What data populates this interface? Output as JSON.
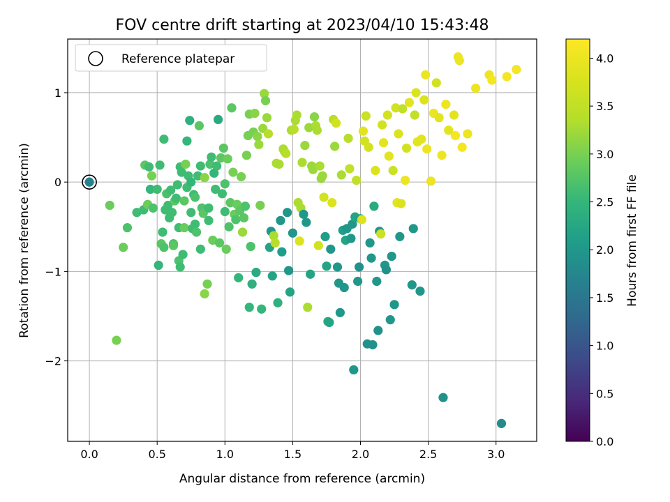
{
  "chart_data": {
    "type": "scatter",
    "title": "FOV centre drift starting at 2023/04/10 15:43:48",
    "xlabel": "Angular distance from reference (arcmin)",
    "ylabel": "Rotation from reference (arcmin)",
    "xlim": [
      -0.16,
      3.3
    ],
    "ylim": [
      -2.9,
      1.6
    ],
    "xticks": [
      0.0,
      0.5,
      1.0,
      1.5,
      2.0,
      2.5,
      3.0
    ],
    "xtick_labels": [
      "0.0",
      "0.5",
      "1.0",
      "1.5",
      "2.0",
      "2.5",
      "3.0"
    ],
    "yticks": [
      -2,
      -1,
      0,
      1
    ],
    "ytick_labels": [
      "−2",
      "−1",
      "0",
      "1"
    ],
    "grid": true,
    "legend": {
      "position": "top-left",
      "entries": [
        "Reference platepar"
      ]
    },
    "reference_point": {
      "x": 0.0,
      "y": 0.0,
      "c": 1.7
    },
    "colorbar": {
      "label": "Hours from first FF file",
      "colormap": "viridis",
      "range": [
        0.0,
        4.2
      ],
      "ticks": [
        0.0,
        0.5,
        1.0,
        1.5,
        2.0,
        2.5,
        3.0,
        3.5,
        4.0
      ],
      "tick_labels": [
        "0.0",
        "0.5",
        "1.0",
        "1.5",
        "2.0",
        "2.5",
        "3.0",
        "3.5",
        "4.0"
      ]
    },
    "points": [
      [
        0.15,
        -0.26,
        2.9
      ],
      [
        0.2,
        -1.77,
        3.0
      ],
      [
        0.25,
        -0.73,
        2.9
      ],
      [
        0.28,
        -0.51,
        2.7
      ],
      [
        0.35,
        -0.34,
        2.6
      ],
      [
        0.4,
        -0.31,
        2.6
      ],
      [
        0.41,
        0.19,
        2.8
      ],
      [
        0.43,
        -0.25,
        2.9
      ],
      [
        0.44,
        0.17,
        2.6
      ],
      [
        0.45,
        -0.08,
        2.5
      ],
      [
        0.46,
        0.07,
        3.0
      ],
      [
        0.47,
        -0.29,
        2.7
      ],
      [
        0.5,
        -0.08,
        2.6
      ],
      [
        0.51,
        -0.93,
        2.5
      ],
      [
        0.52,
        0.19,
        2.6
      ],
      [
        0.53,
        -0.69,
        2.8
      ],
      [
        0.54,
        -0.56,
        2.6
      ],
      [
        0.55,
        0.48,
        2.6
      ],
      [
        0.55,
        -0.73,
        2.7
      ],
      [
        0.56,
        -0.31,
        2.6
      ],
      [
        0.57,
        -0.13,
        2.7
      ],
      [
        0.58,
        -0.26,
        2.6
      ],
      [
        0.59,
        -0.4,
        2.6
      ],
      [
        0.6,
        -0.09,
        2.6
      ],
      [
        0.61,
        -0.34,
        2.6
      ],
      [
        0.62,
        -0.69,
        2.7
      ],
      [
        0.62,
        -0.71,
        2.8
      ],
      [
        0.63,
        -0.21,
        2.8
      ],
      [
        0.64,
        -0.18,
        2.6
      ],
      [
        0.65,
        -0.03,
        2.6
      ],
      [
        0.66,
        -0.51,
        2.6
      ],
      [
        0.66,
        -0.88,
        2.7
      ],
      [
        0.67,
        0.17,
        2.6
      ],
      [
        0.67,
        -0.95,
        2.6
      ],
      [
        0.68,
        0.11,
        2.6
      ],
      [
        0.69,
        -0.81,
        2.6
      ],
      [
        0.7,
        -0.21,
        2.8
      ],
      [
        0.7,
        -0.51,
        2.9
      ],
      [
        0.71,
        0.2,
        3.0
      ],
      [
        0.72,
        0.46,
        2.5
      ],
      [
        0.72,
        -0.06,
        2.6
      ],
      [
        0.73,
        0.07,
        2.6
      ],
      [
        0.74,
        0.69,
        2.4
      ],
      [
        0.75,
        0.0,
        2.5
      ],
      [
        0.75,
        -0.34,
        2.6
      ],
      [
        0.76,
        -0.52,
        2.6
      ],
      [
        0.77,
        -0.14,
        2.6
      ],
      [
        0.78,
        -0.17,
        2.7
      ],
      [
        0.78,
        -0.47,
        2.6
      ],
      [
        0.79,
        -0.56,
        2.7
      ],
      [
        0.8,
        0.07,
        2.6
      ],
      [
        0.81,
        0.63,
        2.8
      ],
      [
        0.82,
        -0.75,
        2.6
      ],
      [
        0.82,
        0.18,
        2.6
      ],
      [
        0.83,
        -0.29,
        2.7
      ],
      [
        0.84,
        -0.35,
        2.8
      ],
      [
        0.85,
        0.05,
        3.1
      ],
      [
        0.85,
        -1.25,
        3.1
      ],
      [
        0.87,
        -1.14,
        3.0
      ],
      [
        0.88,
        -0.29,
        2.6
      ],
      [
        0.88,
        -0.43,
        2.6
      ],
      [
        0.89,
        0.2,
        2.7
      ],
      [
        0.9,
        0.28,
        2.6
      ],
      [
        0.91,
        -0.65,
        2.9
      ],
      [
        0.92,
        0.1,
        2.5
      ],
      [
        0.93,
        -0.08,
        2.6
      ],
      [
        0.94,
        0.18,
        2.6
      ],
      [
        0.95,
        0.7,
        2.3
      ],
      [
        0.96,
        -0.68,
        2.8
      ],
      [
        0.97,
        0.27,
        2.8
      ],
      [
        0.98,
        -0.13,
        2.6
      ],
      [
        0.99,
        0.38,
        2.8
      ],
      [
        1.0,
        -0.02,
        2.7
      ],
      [
        1.0,
        -0.33,
        2.6
      ],
      [
        1.01,
        -0.75,
        2.9
      ],
      [
        1.02,
        0.26,
        2.9
      ],
      [
        1.03,
        -0.5,
        2.7
      ],
      [
        1.04,
        -0.23,
        2.8
      ],
      [
        1.05,
        0.83,
        2.8
      ],
      [
        1.06,
        0.11,
        3.0
      ],
      [
        1.07,
        -0.36,
        2.9
      ],
      [
        1.08,
        -0.42,
        2.7
      ],
      [
        1.09,
        -0.25,
        2.9
      ],
      [
        1.1,
        -1.07,
        2.5
      ],
      [
        1.11,
        -0.32,
        2.8
      ],
      [
        1.12,
        0.06,
        3.0
      ],
      [
        1.13,
        -0.56,
        3.2
      ],
      [
        1.14,
        -0.4,
        2.8
      ],
      [
        1.15,
        -0.27,
        2.7
      ],
      [
        1.16,
        0.3,
        3.0
      ],
      [
        1.17,
        0.52,
        3.0
      ],
      [
        1.18,
        0.76,
        3.0
      ],
      [
        1.18,
        -1.4,
        2.5
      ],
      [
        1.19,
        -0.72,
        2.7
      ],
      [
        1.2,
        -1.14,
        2.4
      ],
      [
        1.21,
        0.56,
        3.0
      ],
      [
        1.22,
        0.77,
        3.1
      ],
      [
        1.23,
        -1.01,
        2.3
      ],
      [
        1.24,
        0.51,
        3.1
      ],
      [
        1.25,
        0.42,
        3.2
      ],
      [
        1.26,
        -0.26,
        3.0
      ],
      [
        1.27,
        -1.42,
        2.5
      ],
      [
        1.28,
        0.6,
        3.2
      ],
      [
        1.29,
        0.99,
        3.2
      ],
      [
        1.3,
        0.91,
        3.0
      ],
      [
        1.31,
        0.72,
        3.2
      ],
      [
        1.32,
        0.54,
        3.4
      ],
      [
        1.33,
        -0.73,
        2.2
      ],
      [
        1.34,
        -0.55,
        2.0
      ],
      [
        1.35,
        -1.05,
        2.2
      ],
      [
        1.36,
        -0.6,
        3.3
      ],
      [
        1.37,
        -0.68,
        3.4
      ],
      [
        1.38,
        0.21,
        3.3
      ],
      [
        1.39,
        -1.35,
        2.4
      ],
      [
        1.4,
        0.2,
        3.3
      ],
      [
        1.41,
        -0.43,
        2.0
      ],
      [
        1.42,
        -0.78,
        2.1
      ],
      [
        1.43,
        0.37,
        3.3
      ],
      [
        1.44,
        0.34,
        3.3
      ],
      [
        1.45,
        0.32,
        3.4
      ],
      [
        1.46,
        -0.34,
        2.0
      ],
      [
        1.47,
        -0.99,
        2.0
      ],
      [
        1.48,
        -1.23,
        2.2
      ],
      [
        1.49,
        0.58,
        3.3
      ],
      [
        1.5,
        -0.57,
        2.0
      ],
      [
        1.51,
        0.59,
        3.4
      ],
      [
        1.52,
        0.69,
        3.3
      ],
      [
        1.53,
        0.75,
        3.3
      ],
      [
        1.54,
        -0.23,
        3.3
      ],
      [
        1.55,
        -0.66,
        3.8
      ],
      [
        1.56,
        -0.29,
        3.3
      ],
      [
        1.57,
        0.22,
        3.3
      ],
      [
        1.58,
        -0.36,
        2.0
      ],
      [
        1.59,
        0.41,
        3.2
      ],
      [
        1.6,
        -0.45,
        2.0
      ],
      [
        1.61,
        -1.4,
        3.3
      ],
      [
        1.62,
        0.61,
        3.2
      ],
      [
        1.63,
        -1.03,
        2.2
      ],
      [
        1.64,
        0.18,
        3.2
      ],
      [
        1.65,
        0.14,
        3.2
      ],
      [
        1.66,
        0.73,
        3.1
      ],
      [
        1.67,
        0.63,
        3.3
      ],
      [
        1.68,
        0.58,
        3.3
      ],
      [
        1.69,
        -0.71,
        3.7
      ],
      [
        1.7,
        0.18,
        3.3
      ],
      [
        1.71,
        0.04,
        3.2
      ],
      [
        1.72,
        0.07,
        3.2
      ],
      [
        1.73,
        -0.17,
        3.7
      ],
      [
        1.74,
        -0.61,
        2.1
      ],
      [
        1.75,
        -0.94,
        2.2
      ],
      [
        1.76,
        -1.56,
        2.3
      ],
      [
        1.77,
        -1.57,
        2.2
      ],
      [
        1.78,
        -0.75,
        2.0
      ],
      [
        1.79,
        -0.23,
        3.8
      ],
      [
        1.8,
        0.7,
        3.4
      ],
      [
        1.81,
        0.4,
        3.2
      ],
      [
        1.82,
        0.66,
        3.7
      ],
      [
        1.83,
        -0.95,
        2.0
      ],
      [
        1.84,
        -1.13,
        2.0
      ],
      [
        1.85,
        -1.46,
        2.0
      ],
      [
        1.86,
        0.08,
        3.3
      ],
      [
        1.87,
        -0.54,
        2.1
      ],
      [
        1.88,
        -1.18,
        2.0
      ],
      [
        1.89,
        -0.65,
        2.2
      ],
      [
        1.9,
        -0.52,
        2.0
      ],
      [
        1.91,
        0.49,
        3.4
      ],
      [
        1.92,
        0.15,
        3.5
      ],
      [
        1.93,
        -0.63,
        2.0
      ],
      [
        1.94,
        -0.47,
        2.0
      ],
      [
        1.95,
        -2.1,
        2.0
      ],
      [
        1.96,
        -0.39,
        2.2
      ],
      [
        1.97,
        0.02,
        3.5
      ],
      [
        1.98,
        -1.11,
        2.0
      ],
      [
        1.99,
        -0.95,
        1.9
      ],
      [
        2.0,
        -0.41,
        2.1
      ],
      [
        2.01,
        -0.42,
        3.8
      ],
      [
        2.02,
        0.57,
        3.9
      ],
      [
        2.03,
        0.46,
        3.7
      ],
      [
        2.04,
        0.74,
        3.6
      ],
      [
        2.05,
        -1.81,
        1.9
      ],
      [
        2.06,
        0.39,
        3.7
      ],
      [
        2.07,
        -0.68,
        2.0
      ],
      [
        2.08,
        -0.85,
        2.0
      ],
      [
        2.09,
        -1.82,
        1.9
      ],
      [
        2.1,
        -0.27,
        2.3
      ],
      [
        2.11,
        0.13,
        3.8
      ],
      [
        2.12,
        -1.11,
        2.0
      ],
      [
        2.13,
        -1.66,
        1.9
      ],
      [
        2.14,
        -0.55,
        2.0
      ],
      [
        2.15,
        -0.58,
        3.6
      ],
      [
        2.16,
        0.64,
        3.7
      ],
      [
        2.17,
        0.44,
        3.9
      ],
      [
        2.18,
        -0.93,
        2.0
      ],
      [
        2.19,
        -0.98,
        1.9
      ],
      [
        2.2,
        0.75,
        3.7
      ],
      [
        2.21,
        0.29,
        3.9
      ],
      [
        2.22,
        -1.54,
        2.0
      ],
      [
        2.23,
        -0.83,
        2.0
      ],
      [
        2.24,
        0.13,
        3.6
      ],
      [
        2.25,
        -1.37,
        2.0
      ],
      [
        2.26,
        0.83,
        3.7
      ],
      [
        2.27,
        -0.23,
        3.9
      ],
      [
        2.28,
        0.54,
        3.8
      ],
      [
        2.29,
        -0.61,
        2.0
      ],
      [
        2.3,
        -0.24,
        3.8
      ],
      [
        2.31,
        0.82,
        3.5
      ],
      [
        2.33,
        0.02,
        4.0
      ],
      [
        2.34,
        0.38,
        3.7
      ],
      [
        2.36,
        0.89,
        3.9
      ],
      [
        2.38,
        -1.15,
        2.0
      ],
      [
        2.39,
        -0.52,
        2.0
      ],
      [
        2.4,
        0.75,
        3.5
      ],
      [
        2.41,
        1.0,
        3.8
      ],
      [
        2.42,
        0.45,
        3.9
      ],
      [
        2.44,
        -1.22,
        2.0
      ],
      [
        2.45,
        0.48,
        3.9
      ],
      [
        2.47,
        0.92,
        3.8
      ],
      [
        2.48,
        1.2,
        4.0
      ],
      [
        2.49,
        0.37,
        4.0
      ],
      [
        2.52,
        0.01,
        4.0
      ],
      [
        2.54,
        0.77,
        4.0
      ],
      [
        2.56,
        1.11,
        3.7
      ],
      [
        2.58,
        0.72,
        3.9
      ],
      [
        2.6,
        0.3,
        4.0
      ],
      [
        2.61,
        -2.41,
        1.9
      ],
      [
        2.63,
        0.87,
        4.0
      ],
      [
        2.65,
        0.58,
        3.9
      ],
      [
        2.69,
        0.75,
        3.9
      ],
      [
        2.7,
        0.52,
        4.1
      ],
      [
        2.72,
        1.4,
        4.0
      ],
      [
        2.73,
        1.36,
        4.0
      ],
      [
        2.75,
        0.39,
        4.1
      ],
      [
        2.79,
        0.54,
        4.0
      ],
      [
        2.85,
        1.05,
        4.0
      ],
      [
        2.95,
        1.2,
        4.0
      ],
      [
        2.97,
        1.14,
        4.1
      ],
      [
        3.04,
        -2.7,
        1.8
      ],
      [
        3.08,
        1.18,
        4.1
      ],
      [
        3.15,
        1.26,
        4.1
      ]
    ]
  }
}
